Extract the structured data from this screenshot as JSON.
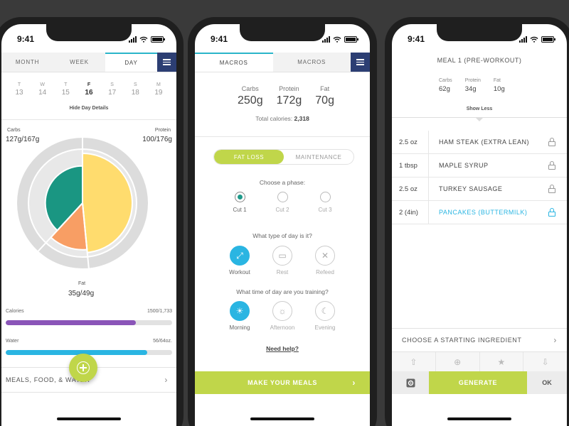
{
  "status": {
    "time": "9:41"
  },
  "screen1": {
    "tabs": [
      "MONTH",
      "WEEK",
      "DAY"
    ],
    "active_tab": "DAY",
    "days": [
      {
        "letter": "T",
        "num": "13"
      },
      {
        "letter": "W",
        "num": "14"
      },
      {
        "letter": "T",
        "num": "15"
      },
      {
        "letter": "F",
        "num": "16"
      },
      {
        "letter": "S",
        "num": "17"
      },
      {
        "letter": "S",
        "num": "18"
      },
      {
        "letter": "M",
        "num": "19"
      }
    ],
    "selected_day_index": 3,
    "hide_details": "Hide Day Details",
    "macros": {
      "carbs": {
        "label": "Carbs",
        "value": "127g/167g"
      },
      "protein": {
        "label": "Protein",
        "value": "100/176g"
      },
      "fat": {
        "label": "Fat",
        "value": "35g/49g"
      }
    },
    "chart_data": {
      "type": "pie",
      "slices": [
        {
          "name": "Carbs",
          "value": 127,
          "target": 167,
          "color": "#ffdc6e"
        },
        {
          "name": "Fat",
          "value": 35,
          "target": 49,
          "color": "#f89e64"
        },
        {
          "name": "Protein",
          "value": 100,
          "target": 176,
          "color": "#1a9682"
        }
      ]
    },
    "calories": {
      "label": "Calories",
      "value": "1500/1,733",
      "fraction": 0.78,
      "color": "#8a55b8"
    },
    "water": {
      "label": "Water",
      "value": "56/64oz.",
      "fraction": 0.85,
      "color": "#2ab5e2"
    },
    "meals_row": "MEALS, FOOD, & WATER"
  },
  "screen2": {
    "tabs": [
      "MACROS",
      "MACROS"
    ],
    "macros": [
      {
        "label": "Carbs",
        "value": "250g"
      },
      {
        "label": "Protein",
        "value": "172g"
      },
      {
        "label": "Fat",
        "value": "70g"
      }
    ],
    "total_label": "Total calories:",
    "total_value": "2,318",
    "toggle": [
      "FAT LOSS",
      "MAINTENANCE"
    ],
    "phase_q": "Choose a phase:",
    "phases": [
      "Cut 1",
      "Cut 2",
      "Cut 3"
    ],
    "day_q": "What type of day is it?",
    "day_types": [
      {
        "label": "Workout",
        "icon": "arrows-expand-icon"
      },
      {
        "label": "Rest",
        "icon": "bed-icon"
      },
      {
        "label": "Refeed",
        "icon": "utensils-icon"
      }
    ],
    "time_q": "What time of day are you training?",
    "times": [
      {
        "label": "Morning",
        "icon": "sunrise-icon"
      },
      {
        "label": "Afternoon",
        "icon": "sun-icon"
      },
      {
        "label": "Evening",
        "icon": "moon-icon"
      }
    ],
    "need_help": "Need help?",
    "make_meals": "MAKE YOUR MEALS"
  },
  "screen3": {
    "meal_title": "MEAL 1 (PRE-WORKOUT)",
    "stats": [
      {
        "label": "Carbs",
        "value": "62g"
      },
      {
        "label": "Protein",
        "value": "34g"
      },
      {
        "label": "Fat",
        "value": "10g"
      }
    ],
    "show_less": "Show Less",
    "ingredients": [
      {
        "qty": "2.5 oz",
        "name": "HAM STEAK (EXTRA LEAN)"
      },
      {
        "qty": "1 tbsp",
        "name": "MAPLE SYRUP"
      },
      {
        "qty": "2.5 oz",
        "name": "TURKEY SAUSAGE"
      },
      {
        "qty": "2 (4in)",
        "name": "PANCAKES (BUTTERMILK)"
      }
    ],
    "highlight_index": 3,
    "choose_starting": "CHOOSE A STARTING INGREDIENT",
    "generate": "GENERATE",
    "ok": "OK"
  }
}
